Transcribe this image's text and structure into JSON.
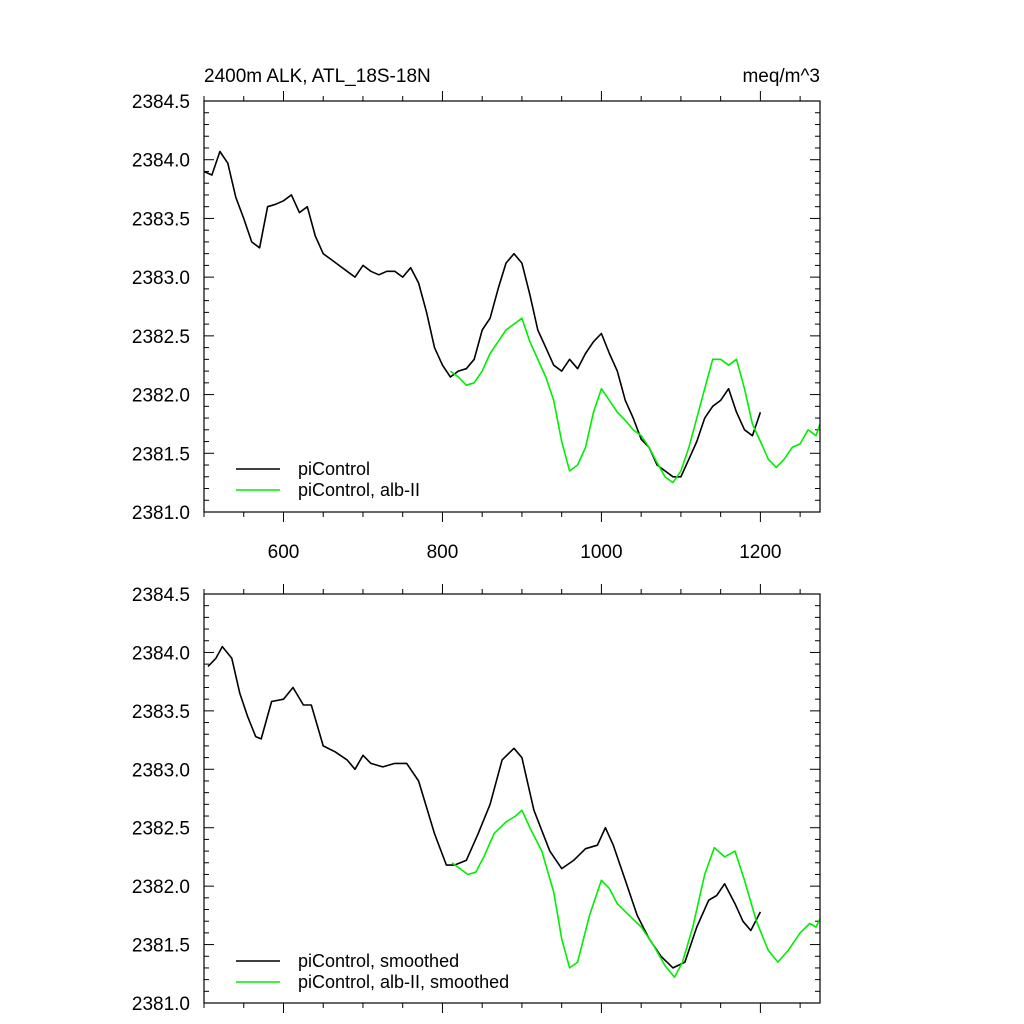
{
  "colors": {
    "control": "#000000",
    "albII": "#00ee00"
  },
  "chart_data": [
    {
      "type": "line",
      "title": "2400m ALK, ATL_18S-18N",
      "units": "meq/m^3",
      "xlim": [
        500,
        1275
      ],
      "ylim": [
        2381.0,
        2384.5
      ],
      "xticks": [
        600,
        800,
        1000,
        1200
      ],
      "xtick_labels": [
        "600",
        "800",
        "1000",
        "1200"
      ],
      "yticks": [
        2381.0,
        2381.5,
        2382.0,
        2382.5,
        2383.0,
        2383.5,
        2384.0,
        2384.5
      ],
      "ytick_labels": [
        "2381.0",
        "2381.5",
        "2382.0",
        "2382.5",
        "2383.0",
        "2383.5",
        "2384.0",
        "2384.5"
      ],
      "legend": [
        "piControl",
        "piControl, alb-II"
      ],
      "legend_position": "bottom-left",
      "series": [
        {
          "name": "piControl",
          "color": "#000000",
          "points": [
            [
              500,
              2383.9
            ],
            [
              510,
              2383.87
            ],
            [
              520,
              2384.07
            ],
            [
              530,
              2383.97
            ],
            [
              540,
              2383.68
            ],
            [
              550,
              2383.5
            ],
            [
              560,
              2383.3
            ],
            [
              570,
              2383.25
            ],
            [
              580,
              2383.6
            ],
            [
              590,
              2383.62
            ],
            [
              600,
              2383.65
            ],
            [
              610,
              2383.7
            ],
            [
              620,
              2383.55
            ],
            [
              630,
              2383.6
            ],
            [
              640,
              2383.35
            ],
            [
              650,
              2383.2
            ],
            [
              660,
              2383.15
            ],
            [
              670,
              2383.1
            ],
            [
              680,
              2383.05
            ],
            [
              690,
              2383.0
            ],
            [
              700,
              2383.1
            ],
            [
              710,
              2383.05
            ],
            [
              720,
              2383.02
            ],
            [
              730,
              2383.05
            ],
            [
              740,
              2383.05
            ],
            [
              750,
              2383.0
            ],
            [
              760,
              2383.08
            ],
            [
              770,
              2382.95
            ],
            [
              780,
              2382.7
            ],
            [
              790,
              2382.4
            ],
            [
              800,
              2382.25
            ],
            [
              810,
              2382.15
            ],
            [
              820,
              2382.2
            ],
            [
              830,
              2382.22
            ],
            [
              840,
              2382.3
            ],
            [
              850,
              2382.55
            ],
            [
              860,
              2382.65
            ],
            [
              870,
              2382.9
            ],
            [
              880,
              2383.12
            ],
            [
              890,
              2383.2
            ],
            [
              900,
              2383.12
            ],
            [
              910,
              2382.85
            ],
            [
              920,
              2382.55
            ],
            [
              930,
              2382.4
            ],
            [
              940,
              2382.25
            ],
            [
              950,
              2382.2
            ],
            [
              960,
              2382.3
            ],
            [
              970,
              2382.22
            ],
            [
              980,
              2382.35
            ],
            [
              990,
              2382.45
            ],
            [
              1000,
              2382.52
            ],
            [
              1010,
              2382.35
            ],
            [
              1020,
              2382.2
            ],
            [
              1030,
              2381.95
            ],
            [
              1040,
              2381.8
            ],
            [
              1050,
              2381.62
            ],
            [
              1060,
              2381.55
            ],
            [
              1070,
              2381.4
            ],
            [
              1080,
              2381.35
            ],
            [
              1090,
              2381.3
            ],
            [
              1100,
              2381.3
            ],
            [
              1110,
              2381.45
            ],
            [
              1120,
              2381.6
            ],
            [
              1130,
              2381.8
            ],
            [
              1140,
              2381.9
            ],
            [
              1150,
              2381.95
            ],
            [
              1160,
              2382.05
            ],
            [
              1170,
              2381.85
            ],
            [
              1180,
              2381.7
            ],
            [
              1190,
              2381.65
            ],
            [
              1200,
              2381.85
            ]
          ]
        },
        {
          "name": "piControl, alb-II",
          "color": "#00ee00",
          "points": [
            [
              810,
              2382.2
            ],
            [
              820,
              2382.15
            ],
            [
              830,
              2382.08
            ],
            [
              840,
              2382.1
            ],
            [
              850,
              2382.2
            ],
            [
              860,
              2382.35
            ],
            [
              870,
              2382.45
            ],
            [
              880,
              2382.55
            ],
            [
              890,
              2382.6
            ],
            [
              900,
              2382.65
            ],
            [
              910,
              2382.45
            ],
            [
              920,
              2382.3
            ],
            [
              930,
              2382.15
            ],
            [
              940,
              2381.95
            ],
            [
              950,
              2381.6
            ],
            [
              960,
              2381.35
            ],
            [
              970,
              2381.4
            ],
            [
              980,
              2381.55
            ],
            [
              990,
              2381.85
            ],
            [
              1000,
              2382.05
            ],
            [
              1010,
              2381.95
            ],
            [
              1020,
              2381.85
            ],
            [
              1030,
              2381.78
            ],
            [
              1040,
              2381.7
            ],
            [
              1050,
              2381.65
            ],
            [
              1060,
              2381.55
            ],
            [
              1070,
              2381.42
            ],
            [
              1080,
              2381.3
            ],
            [
              1090,
              2381.25
            ],
            [
              1100,
              2381.35
            ],
            [
              1110,
              2381.55
            ],
            [
              1120,
              2381.8
            ],
            [
              1130,
              2382.05
            ],
            [
              1140,
              2382.3
            ],
            [
              1150,
              2382.3
            ],
            [
              1160,
              2382.25
            ],
            [
              1170,
              2382.3
            ],
            [
              1180,
              2382.05
            ],
            [
              1190,
              2381.75
            ],
            [
              1200,
              2381.6
            ],
            [
              1210,
              2381.45
            ],
            [
              1220,
              2381.38
            ],
            [
              1230,
              2381.45
            ],
            [
              1240,
              2381.55
            ],
            [
              1250,
              2381.58
            ],
            [
              1260,
              2381.7
            ],
            [
              1270,
              2381.65
            ],
            [
              1275,
              2381.75
            ]
          ]
        }
      ]
    },
    {
      "type": "line",
      "xlim": [
        500,
        1275
      ],
      "ylim": [
        2381.0,
        2384.5
      ],
      "xticks": [
        600,
        800,
        1000,
        1200
      ],
      "yticks": [
        2381.0,
        2381.5,
        2382.0,
        2382.5,
        2383.0,
        2383.5,
        2384.0,
        2384.5
      ],
      "ytick_labels": [
        "2381.0",
        "2381.5",
        "2382.0",
        "2382.5",
        "2383.0",
        "2383.5",
        "2384.0",
        "2384.5"
      ],
      "legend": [
        "piControl, smoothed",
        "piControl, alb-II, smoothed"
      ],
      "legend_position": "bottom-left",
      "series": [
        {
          "name": "piControl, smoothed",
          "color": "#000000",
          "points": [
            [
              505,
              2383.88
            ],
            [
              515,
              2383.95
            ],
            [
              523,
              2384.05
            ],
            [
              535,
              2383.95
            ],
            [
              545,
              2383.65
            ],
            [
              555,
              2383.45
            ],
            [
              565,
              2383.28
            ],
            [
              572,
              2383.26
            ],
            [
              585,
              2383.58
            ],
            [
              600,
              2383.6
            ],
            [
              612,
              2383.7
            ],
            [
              625,
              2383.55
            ],
            [
              635,
              2383.55
            ],
            [
              650,
              2383.2
            ],
            [
              665,
              2383.15
            ],
            [
              680,
              2383.08
            ],
            [
              690,
              2383.0
            ],
            [
              700,
              2383.12
            ],
            [
              710,
              2383.05
            ],
            [
              725,
              2383.02
            ],
            [
              740,
              2383.05
            ],
            [
              755,
              2383.05
            ],
            [
              770,
              2382.9
            ],
            [
              790,
              2382.45
            ],
            [
              805,
              2382.18
            ],
            [
              815,
              2382.18
            ],
            [
              830,
              2382.22
            ],
            [
              845,
              2382.45
            ],
            [
              860,
              2382.7
            ],
            [
              875,
              2383.08
            ],
            [
              890,
              2383.18
            ],
            [
              900,
              2383.1
            ],
            [
              915,
              2382.65
            ],
            [
              935,
              2382.3
            ],
            [
              950,
              2382.15
            ],
            [
              965,
              2382.22
            ],
            [
              980,
              2382.32
            ],
            [
              995,
              2382.35
            ],
            [
              1005,
              2382.5
            ],
            [
              1015,
              2382.35
            ],
            [
              1030,
              2382.05
            ],
            [
              1045,
              2381.75
            ],
            [
              1060,
              2381.55
            ],
            [
              1075,
              2381.4
            ],
            [
              1090,
              2381.3
            ],
            [
              1105,
              2381.35
            ],
            [
              1120,
              2381.65
            ],
            [
              1135,
              2381.88
            ],
            [
              1145,
              2381.92
            ],
            [
              1155,
              2382.02
            ],
            [
              1168,
              2381.85
            ],
            [
              1178,
              2381.7
            ],
            [
              1188,
              2381.62
            ],
            [
              1200,
              2381.78
            ]
          ]
        },
        {
          "name": "piControl, alb-II, smoothed",
          "color": "#00ee00",
          "points": [
            [
              812,
              2382.2
            ],
            [
              822,
              2382.15
            ],
            [
              832,
              2382.1
            ],
            [
              842,
              2382.12
            ],
            [
              852,
              2382.25
            ],
            [
              865,
              2382.45
            ],
            [
              880,
              2382.55
            ],
            [
              892,
              2382.6
            ],
            [
              900,
              2382.65
            ],
            [
              910,
              2382.5
            ],
            [
              925,
              2382.3
            ],
            [
              940,
              2381.95
            ],
            [
              950,
              2381.55
            ],
            [
              960,
              2381.3
            ],
            [
              970,
              2381.35
            ],
            [
              985,
              2381.75
            ],
            [
              1000,
              2382.05
            ],
            [
              1010,
              2381.98
            ],
            [
              1020,
              2381.85
            ],
            [
              1035,
              2381.75
            ],
            [
              1050,
              2381.65
            ],
            [
              1065,
              2381.5
            ],
            [
              1080,
              2381.32
            ],
            [
              1092,
              2381.22
            ],
            [
              1102,
              2381.35
            ],
            [
              1115,
              2381.65
            ],
            [
              1130,
              2382.1
            ],
            [
              1142,
              2382.33
            ],
            [
              1155,
              2382.25
            ],
            [
              1168,
              2382.3
            ],
            [
              1180,
              2382.05
            ],
            [
              1195,
              2381.7
            ],
            [
              1210,
              2381.45
            ],
            [
              1222,
              2381.35
            ],
            [
              1235,
              2381.45
            ],
            [
              1250,
              2381.6
            ],
            [
              1262,
              2381.68
            ],
            [
              1270,
              2381.65
            ],
            [
              1275,
              2381.72
            ]
          ]
        }
      ]
    }
  ]
}
